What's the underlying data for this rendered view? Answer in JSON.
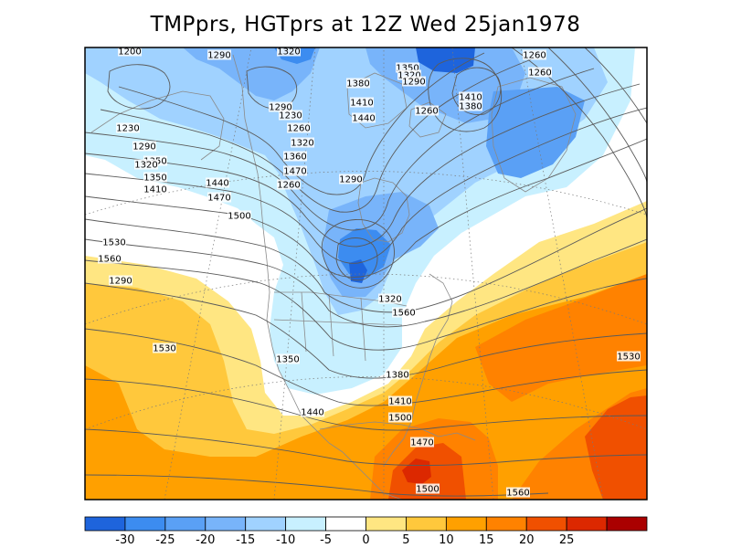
{
  "title": "TMPprs, HGTprs at 12Z Wed 25jan1978",
  "colorbar": {
    "colors": [
      "#1e64dc",
      "#3c8cf0",
      "#5aa0f5",
      "#78b4fa",
      "#a0d2ff",
      "#c8f0ff",
      "#ffffff",
      "#ffe682",
      "#ffc83c",
      "#ffa000",
      "#ff8200",
      "#f05000",
      "#dc2800",
      "#aa0000"
    ],
    "tick_labels": [
      "-30",
      "-25",
      "-20",
      "-15",
      "-10",
      "-5",
      "0",
      "5",
      "10",
      "15",
      "20",
      "25"
    ]
  },
  "fill_colors": {
    "warm_orange": "#ffa000",
    "warm_light_orange": "#ffc83c",
    "warm_yellow": "#ffe682",
    "neutral_white": "#ffffff",
    "cold_pale": "#c8f0ff",
    "cold_light": "#a0d2ff",
    "cold_mid": "#78b4fa",
    "cold_med": "#5aa0f5",
    "cold_deep": "#3c8cf0",
    "cold_darkest": "#1e64dc",
    "hot_dark_orange": "#ff8200",
    "hot_red_orange": "#f05000",
    "hot_red": "#dc2800"
  },
  "contour_labels": [
    {
      "text": "1200"
    },
    {
      "text": "1290"
    },
    {
      "text": "1320"
    },
    {
      "text": "1350"
    },
    {
      "text": "1320"
    },
    {
      "text": "1290"
    },
    {
      "text": "1260"
    },
    {
      "text": "1380"
    },
    {
      "text": "1410"
    },
    {
      "text": "1440"
    },
    {
      "text": "1260"
    },
    {
      "text": "1410"
    },
    {
      "text": "1380"
    },
    {
      "text": "1290"
    },
    {
      "text": "1260"
    },
    {
      "text": "1230"
    },
    {
      "text": "1230"
    },
    {
      "text": "1260"
    },
    {
      "text": "1290"
    },
    {
      "text": "1320"
    },
    {
      "text": "1350"
    },
    {
      "text": "1360"
    },
    {
      "text": "1470"
    },
    {
      "text": "1260"
    },
    {
      "text": "1290"
    },
    {
      "text": "1320"
    },
    {
      "text": "1350"
    },
    {
      "text": "1410"
    },
    {
      "text": "1440"
    },
    {
      "text": "1470"
    },
    {
      "text": "1500"
    },
    {
      "text": "1530"
    },
    {
      "text": "1560"
    },
    {
      "text": "1290"
    },
    {
      "text": "1320"
    },
    {
      "text": "1560"
    },
    {
      "text": "1530"
    },
    {
      "text": "1350"
    },
    {
      "text": "1380"
    },
    {
      "text": "1410"
    },
    {
      "text": "1500"
    },
    {
      "text": "1440"
    },
    {
      "text": "1470"
    },
    {
      "text": "1500"
    },
    {
      "text": "1560"
    },
    {
      "text": "1530"
    }
  ]
}
